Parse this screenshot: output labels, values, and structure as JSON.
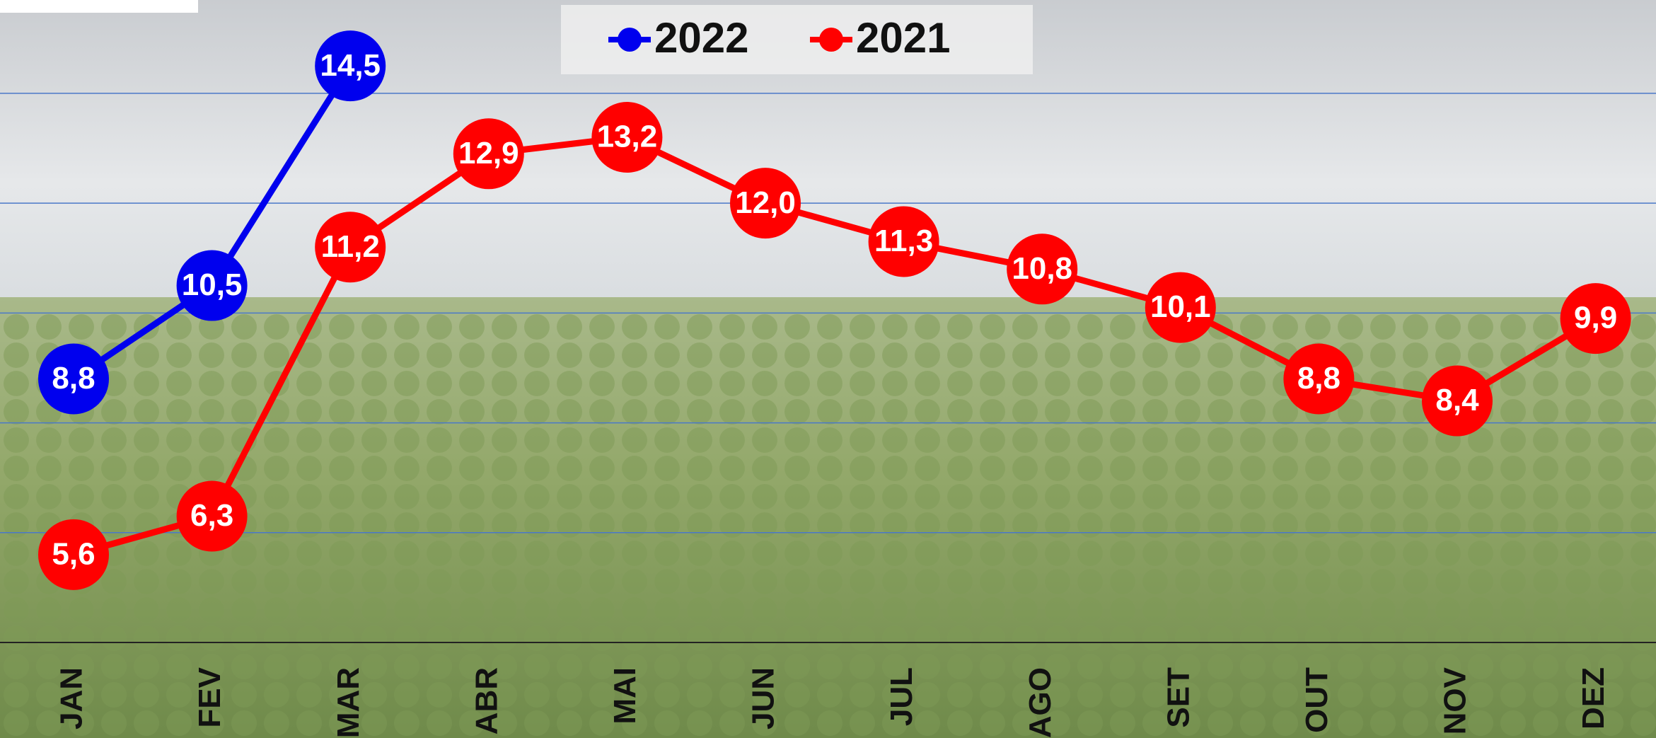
{
  "chart_data": {
    "type": "line",
    "categories": [
      "JAN",
      "FEV",
      "MAR",
      "ABR",
      "MAI",
      "JUN",
      "JUL",
      "AGO",
      "SET",
      "OUT",
      "NOV",
      "DEZ"
    ],
    "series": [
      {
        "name": "2022",
        "color": "#0000ee",
        "values": [
          8.8,
          10.5,
          14.5,
          null,
          null,
          null,
          null,
          null,
          null,
          null,
          null,
          null
        ],
        "value_labels": [
          "8,8",
          "10,5",
          "14,5",
          null,
          null,
          null,
          null,
          null,
          null,
          null,
          null,
          null
        ]
      },
      {
        "name": "2021",
        "color": "#ff0000",
        "values": [
          5.6,
          6.3,
          11.2,
          12.9,
          13.2,
          12.0,
          11.3,
          10.8,
          10.1,
          8.8,
          8.4,
          9.9
        ],
        "value_labels": [
          "5,6",
          "6,3",
          "11,2",
          "12,9",
          "13,2",
          "12,0",
          "11,3",
          "10,8",
          "10,1",
          "8,8",
          "8,4",
          "9,9"
        ]
      }
    ],
    "ylim": [
      4,
      15.7
    ],
    "gridlines": [
      6,
      8,
      10,
      12,
      14
    ],
    "legend": "top"
  }
}
